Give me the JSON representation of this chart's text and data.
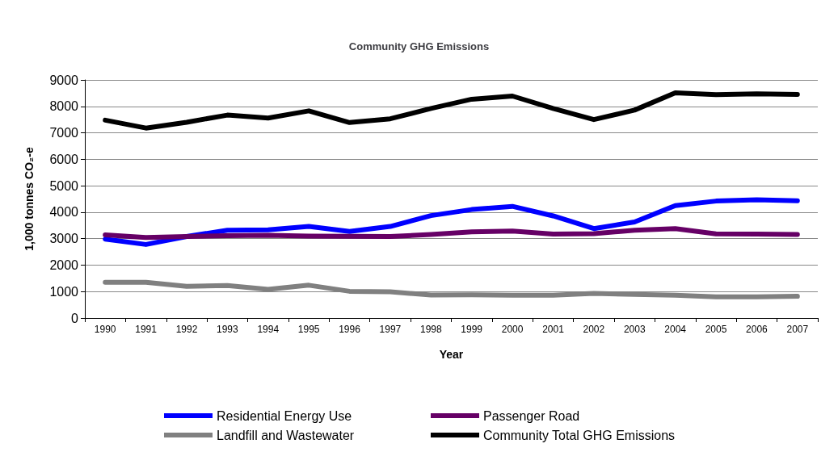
{
  "chart_data": {
    "type": "line",
    "title": "Community GHG Emissions",
    "xlabel": "Year",
    "ylabel": "1,000 tonnes CO₂-e",
    "categories": [
      "1990",
      "1991",
      "1992",
      "1993",
      "1994",
      "1995",
      "1996",
      "1997",
      "1998",
      "1999",
      "2000",
      "2001",
      "2002",
      "2003",
      "2004",
      "2005",
      "2006",
      "2007"
    ],
    "series": [
      {
        "name": "Residential Energy Use",
        "color": "#0000ff",
        "values": [
          2980,
          2780,
          3080,
          3320,
          3330,
          3460,
          3270,
          3460,
          3870,
          4100,
          4220,
          3860,
          3380,
          3630,
          4250,
          4420,
          4470,
          4430
        ]
      },
      {
        "name": "Passenger Road",
        "color": "#660066",
        "values": [
          3140,
          3040,
          3080,
          3110,
          3130,
          3100,
          3090,
          3080,
          3160,
          3260,
          3290,
          3170,
          3190,
          3320,
          3380,
          3180,
          3170,
          3160
        ]
      },
      {
        "name": "Landfill and Wastewater",
        "color": "#808080",
        "values": [
          1350,
          1350,
          1200,
          1230,
          1080,
          1240,
          1010,
          990,
          870,
          880,
          860,
          860,
          930,
          890,
          860,
          800,
          800,
          820
        ]
      },
      {
        "name": "Community Total GHG Emissions",
        "color": "#000000",
        "values": [
          7480,
          7180,
          7400,
          7670,
          7560,
          7830,
          7390,
          7530,
          7920,
          8270,
          8390,
          7920,
          7500,
          7860,
          8510,
          8440,
          8470,
          8450
        ]
      }
    ],
    "ylim": [
      0,
      9000
    ],
    "yticks": [
      0,
      1000,
      2000,
      3000,
      4000,
      5000,
      6000,
      7000,
      8000,
      9000
    ],
    "grid": "y",
    "legend": "bottom",
    "marker": "none",
    "line_style": "solid"
  }
}
